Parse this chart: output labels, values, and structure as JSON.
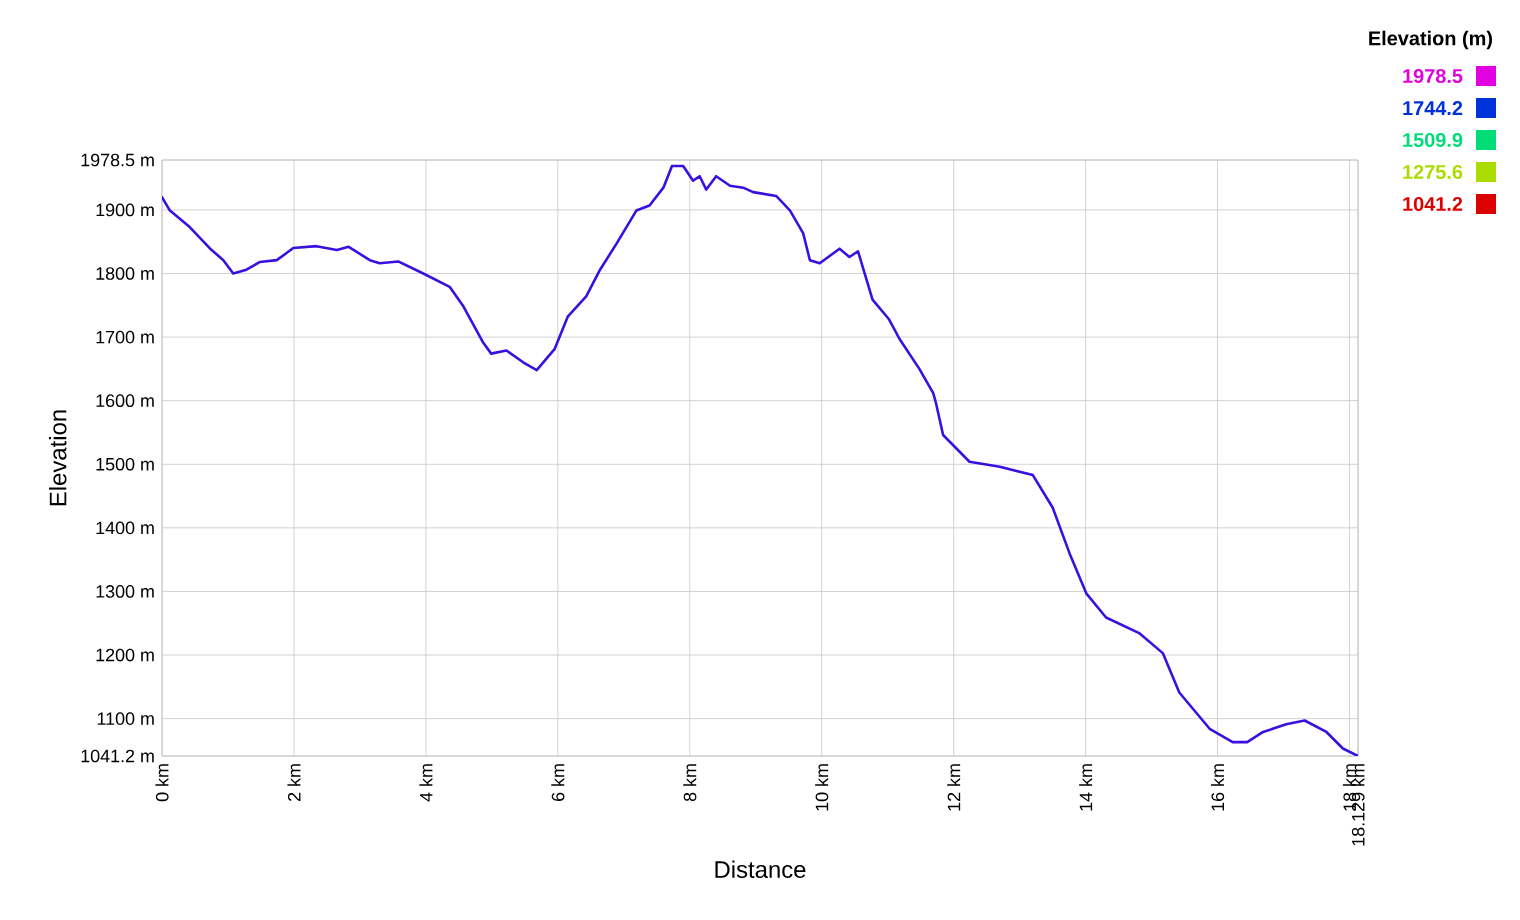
{
  "chart_data": {
    "type": "line",
    "xlabel": "Distance",
    "ylabel": "Elevation",
    "annotations": [
      "Elevation (m)",
      "1978.5",
      "1744.2",
      "1509.9",
      "1275.6",
      "1041.2"
    ],
    "x": [
      0,
      0.12,
      0.42,
      0.73,
      0.93,
      1.08,
      1.28,
      1.48,
      1.74,
      1.99,
      2.34,
      2.65,
      2.83,
      3.15,
      3.3,
      3.58,
      3.96,
      4.36,
      4.57,
      4.87,
      4.99,
      5.22,
      5.48,
      5.68,
      5.95,
      6.15,
      6.43,
      6.64,
      6.89,
      7.19,
      7.39,
      7.6,
      7.73,
      7.9,
      8.05,
      8.15,
      8.25,
      8.4,
      8.61,
      8.81,
      8.96,
      9.31,
      9.52,
      9.72,
      9.82,
      9.97,
      10.27,
      10.42,
      10.55,
      10.77,
      11.02,
      11.18,
      11.48,
      11.69,
      11.73,
      11.84,
      12.24,
      12.7,
      13.2,
      13.5,
      13.76,
      14.01,
      14.31,
      14.82,
      15.17,
      15.42,
      15.88,
      16.23,
      16.45,
      16.69,
      17.04,
      17.32,
      17.65,
      17.9,
      18.129
    ],
    "values": [
      1920,
      1899,
      1873,
      1839,
      1821,
      1800,
      1806,
      1818,
      1821,
      1840,
      1843,
      1837,
      1842,
      1821,
      1816,
      1819,
      1800,
      1779,
      1748,
      1691,
      1674,
      1679,
      1660,
      1648,
      1681,
      1732,
      1764,
      1806,
      1847,
      1899,
      1907,
      1935,
      1969,
      1969,
      1946,
      1953,
      1932,
      1953,
      1938,
      1935,
      1928,
      1922,
      1899,
      1863,
      1821,
      1816,
      1839,
      1826,
      1835,
      1759,
      1728,
      1697,
      1650,
      1612,
      1597,
      1546,
      1504,
      1496,
      1483,
      1432,
      1359,
      1297,
      1259,
      1234,
      1203,
      1141,
      1084,
      1063,
      1063,
      1079,
      1091,
      1097,
      1079,
      1053,
      1041.2
    ],
    "color": "#3a10e0",
    "xlim": [
      0,
      18.129
    ],
    "ylim": [
      1041.2,
      1978.5
    ],
    "xticks": [
      {
        "value": 0,
        "label": "0 km"
      },
      {
        "value": 2,
        "label": "2 km"
      },
      {
        "value": 4,
        "label": "4 km"
      },
      {
        "value": 6,
        "label": "6 km"
      },
      {
        "value": 8,
        "label": "8 km"
      },
      {
        "value": 10,
        "label": "10 km"
      },
      {
        "value": 12,
        "label": "12 km"
      },
      {
        "value": 14,
        "label": "14 km"
      },
      {
        "value": 16,
        "label": "16 km"
      },
      {
        "value": 18,
        "label": "18 km"
      },
      {
        "value": 18.129,
        "label": "18.129 km"
      }
    ],
    "yticks": [
      {
        "value": 1041.2,
        "label": "1041.2 m"
      },
      {
        "value": 1100,
        "label": "1100 m"
      },
      {
        "value": 1200,
        "label": "1200 m"
      },
      {
        "value": 1300,
        "label": "1300 m"
      },
      {
        "value": 1400,
        "label": "1400 m"
      },
      {
        "value": 1500,
        "label": "1500 m"
      },
      {
        "value": 1600,
        "label": "1600 m"
      },
      {
        "value": 1700,
        "label": "1700 m"
      },
      {
        "value": 1800,
        "label": "1800 m"
      },
      {
        "value": 1900,
        "label": "1900 m"
      },
      {
        "value": 1978.5,
        "label": "1978.5 m"
      }
    ],
    "grid": true
  }
}
